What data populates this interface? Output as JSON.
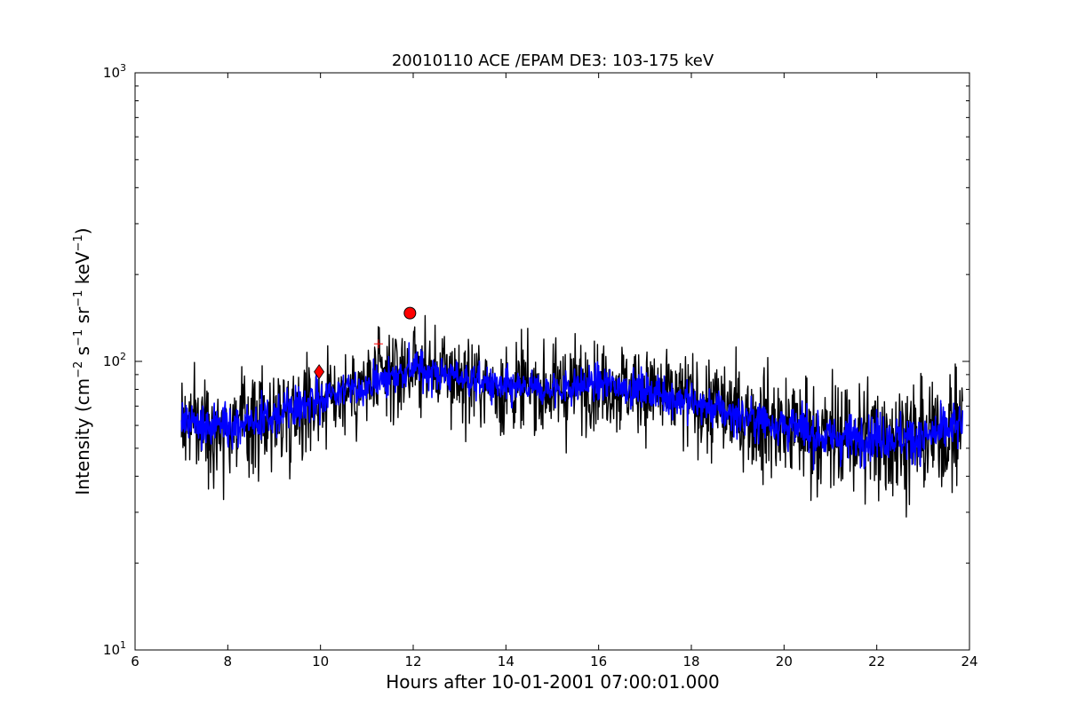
{
  "chart_data": {
    "type": "line",
    "title": "20010110 ACE /EPAM DE3: 103-175 keV",
    "xlabel": "Hours after 10-01-2001 07:00:01.000",
    "ylabel": {
      "prefix": "Intensity (cm",
      "exp1": "−2",
      "s": " s",
      "exp2": "−1",
      "sr": " sr",
      "exp3": "−1",
      "kev": " keV",
      "exp4": "−1",
      "suffix": ")"
    },
    "xlim": [
      6,
      24
    ],
    "ylim": [
      10,
      1000
    ],
    "yscale": "log",
    "xticks": [
      "6",
      "8",
      "10",
      "12",
      "14",
      "16",
      "18",
      "20",
      "22",
      "24"
    ],
    "yticks": [
      {
        "value": 10,
        "base": "10",
        "exp": "1"
      },
      {
        "value": 100,
        "base": "10",
        "exp": "2"
      },
      {
        "value": 1000,
        "base": "10",
        "exp": "3"
      }
    ],
    "grid": false,
    "series": [
      {
        "color": "#000000",
        "x": [
          7.0,
          8.0,
          9.0,
          10.0,
          11.0,
          12.0,
          13.0,
          14.0,
          15.0,
          16.0,
          17.0,
          18.0,
          19.0,
          20.0,
          21.0,
          22.0,
          23.0,
          23.85
        ],
        "values": [
          62,
          60,
          64,
          75,
          82,
          95,
          88,
          80,
          80,
          84,
          80,
          72,
          65,
          60,
          54,
          55,
          54,
          60
        ],
        "spread": [
          0.34,
          0.34,
          0.34,
          0.32,
          0.3,
          0.3,
          0.3,
          0.3,
          0.3,
          0.3,
          0.3,
          0.32,
          0.34,
          0.38,
          0.4,
          0.4,
          0.4,
          0.38
        ],
        "style": "noisy"
      },
      {
        "color": "#0000ff",
        "x": [
          7.0,
          8.0,
          9.0,
          10.0,
          11.0,
          12.0,
          13.0,
          14.0,
          15.0,
          16.0,
          17.0,
          18.0,
          19.0,
          20.0,
          21.0,
          22.0,
          23.0,
          23.85
        ],
        "values": [
          62,
          60,
          64,
          75,
          82,
          95,
          88,
          80,
          80,
          84,
          80,
          72,
          65,
          60,
          54,
          55,
          54,
          60
        ],
        "spread": [
          0.14,
          0.14,
          0.14,
          0.13,
          0.12,
          0.12,
          0.12,
          0.12,
          0.12,
          0.12,
          0.12,
          0.13,
          0.14,
          0.15,
          0.16,
          0.16,
          0.16,
          0.15
        ],
        "style": "noisy"
      }
    ],
    "markers": [
      {
        "shape": "diamond",
        "x": 9.97,
        "y": 92,
        "color": "#ff0000"
      },
      {
        "shape": "circle",
        "x": 11.93,
        "y": 147,
        "color": "#ff0000"
      },
      {
        "shape": "plus",
        "x": 11.25,
        "y": 115,
        "color": "#ff0000"
      }
    ]
  }
}
